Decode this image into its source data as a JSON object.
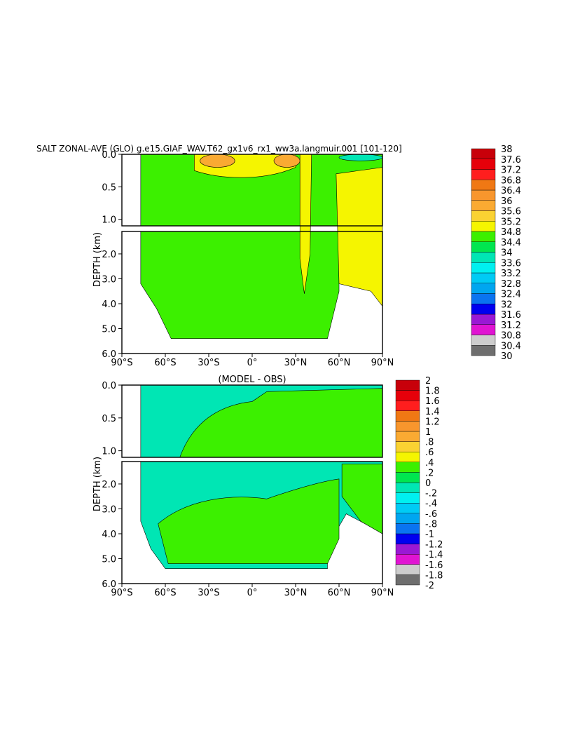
{
  "figure_title": "SALT ZONAL-AVE (GLO) g.e15.GIAF_WAV.T62_gx1v6_rx1_ww3a.langmuir.001 [101-120]",
  "colors": {
    "abs": [
      "#6e6e6e",
      "#cdcdcd",
      "#e014d2",
      "#9a18d4",
      "#0000f0",
      "#0a74f0",
      "#00a6f0",
      "#00cbf5",
      "#00f0f0",
      "#00e6b4",
      "#00e650",
      "#3cf000",
      "#f5f500",
      "#fad232",
      "#faaa32",
      "#f8962d",
      "#f07814",
      "#ff1e1e",
      "#e6000a",
      "#c8000a"
    ],
    "diff": [
      "#6e6e6e",
      "#cdcdcd",
      "#e014d2",
      "#9a18d4",
      "#0000f0",
      "#0a74f0",
      "#00a6f0",
      "#00cbf5",
      "#00f0f0",
      "#00e6b4",
      "#00e650",
      "#3cf000",
      "#f5f500",
      "#fad232",
      "#faaa32",
      "#f8962d",
      "#f07814",
      "#ff1e1e",
      "#e6000a",
      "#c8000a"
    ]
  },
  "chart_data": [
    {
      "type": "heatmap",
      "title": "",
      "xlabel": "",
      "ylabel": "DEPTH (km)",
      "xlim": [
        -90,
        90
      ],
      "upper_ylim": [
        0.0,
        1.1
      ],
      "lower_ylim": [
        1.1,
        6.0
      ],
      "x_ticks": [
        "90°S",
        "60°S",
        "30°S",
        "0°",
        "30°N",
        "60°N",
        "90°N"
      ],
      "upper_y_ticks": [
        "0.0",
        "0.5",
        "1.0"
      ],
      "lower_y_ticks": [
        "2.0",
        "3.0",
        "4.0",
        "5.0",
        "6.0"
      ],
      "colorbar_labels": [
        "30",
        "30.4",
        "30.8",
        "31.2",
        "31.6",
        "32",
        "32.4",
        "32.8",
        "33.2",
        "33.6",
        "34",
        "34.4",
        "34.8",
        "35.2",
        "35.6",
        "36",
        "36.4",
        "36.8",
        "37.2",
        "37.6",
        "38"
      ],
      "regions": [
        {
          "level": 34.4,
          "shape": "upper_green",
          "lat": [
            -77,
            90
          ],
          "depth": [
            0.0,
            1.1
          ]
        },
        {
          "level": 34.8,
          "shape": "upper_yellow",
          "lat": [
            -40,
            30
          ],
          "depth": [
            0.0,
            0.4
          ]
        },
        {
          "level": 35.6,
          "shape": "sub_south",
          "lat": [
            -36,
            -12
          ],
          "depth": [
            0.0,
            0.2
          ]
        },
        {
          "level": 35.6,
          "shape": "sub_north",
          "lat": [
            15,
            33
          ],
          "depth": [
            0.0,
            0.2
          ]
        },
        {
          "level": 34.8,
          "shape": "med",
          "lat": [
            32,
            42
          ],
          "depth": [
            0.0,
            3.6
          ]
        },
        {
          "level": 34.8,
          "shape": "atlantic_north",
          "lat": [
            58,
            90
          ],
          "depth": [
            0.0,
            4.1
          ]
        },
        {
          "level": 33.6,
          "shape": "arctic",
          "lat": [
            60,
            90
          ],
          "depth": [
            0.0,
            0.1
          ]
        }
      ]
    },
    {
      "type": "heatmap",
      "title": "(MODEL - OBS)",
      "xlabel": "",
      "ylabel": "DEPTH (km)",
      "xlim": [
        -90,
        90
      ],
      "upper_ylim": [
        0.0,
        1.1
      ],
      "lower_ylim": [
        1.1,
        6.0
      ],
      "x_ticks": [
        "90°S",
        "60°S",
        "30°S",
        "0°",
        "30°N",
        "60°N",
        "90°N"
      ],
      "upper_y_ticks": [
        "0.0",
        "0.5",
        "1.0"
      ],
      "lower_y_ticks": [
        "2.0",
        "3.0",
        "4.0",
        "5.0",
        "6.0"
      ],
      "colorbar_labels": [
        "-2",
        "-1.8",
        "-1.6",
        "-1.4",
        "-1.2",
        "-1",
        "-.8",
        "-.6",
        "-.4",
        "-.2",
        "0",
        ".2",
        ".4",
        ".6",
        ".8",
        "1",
        "1.2",
        "1.4",
        "1.6",
        "1.8",
        "2"
      ],
      "regions": [
        {
          "level": -0.2,
          "shape": "base_cyan",
          "lat": [
            -77,
            90
          ],
          "depth": [
            0.0,
            5.4
          ]
        },
        {
          "level": 0.2,
          "shape": "upper_green",
          "lat": [
            -50,
            90
          ],
          "depth": [
            0.0,
            1.1
          ]
        },
        {
          "level": 0.2,
          "shape": "lower_green",
          "lat": [
            -65,
            65
          ],
          "depth": [
            1.8,
            5.4
          ]
        },
        {
          "level": 0.2,
          "shape": "north_green",
          "lat": [
            62,
            90
          ],
          "depth": [
            1.2,
            4.0
          ]
        }
      ]
    }
  ]
}
